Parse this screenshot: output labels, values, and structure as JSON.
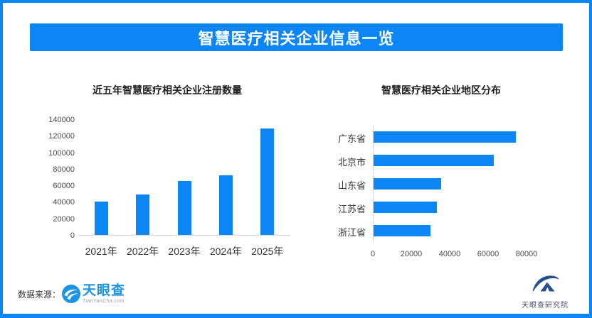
{
  "page": {
    "title": "智慧医疗相关企业信息一览"
  },
  "colors": {
    "accent_blue": "#0a86f6",
    "bar_blue": "#0a86f6",
    "tianyancha_blue": "#1d93e3",
    "institute_navy": "#264f8c",
    "axis_line": "#d4d4d4"
  },
  "chart_data": [
    {
      "type": "bar",
      "orientation": "vertical",
      "title": "近五年智慧医疗相关企业注册数量",
      "categories": [
        "2021年",
        "2022年",
        "2023年",
        "2024年",
        "2025年"
      ],
      "values": [
        40000,
        49000,
        65000,
        72000,
        128500
      ],
      "ylim": [
        0,
        140000
      ],
      "yticks": [
        0,
        20000,
        40000,
        60000,
        80000,
        100000,
        120000,
        140000
      ],
      "grid": false,
      "legend": "none",
      "bar_color": "#0a86f6"
    },
    {
      "type": "bar",
      "orientation": "horizontal",
      "title": "智慧医疗相关企业地区分布",
      "categories": [
        "广东省",
        "北京市",
        "山东省",
        "江苏省",
        "浙江省"
      ],
      "values": [
        74000,
        62500,
        35000,
        33000,
        29500
      ],
      "xlim": [
        0,
        92000
      ],
      "xticks": [
        0,
        20000,
        40000,
        60000,
        80000
      ],
      "grid": false,
      "legend": "none",
      "bar_color": "#0a86f6"
    }
  ],
  "footer": {
    "source_label": "数据来源：",
    "tianyancha": {
      "name": "天眼查",
      "domain": "TianYanCha.com"
    },
    "research_institute": "天眼查研究院"
  }
}
